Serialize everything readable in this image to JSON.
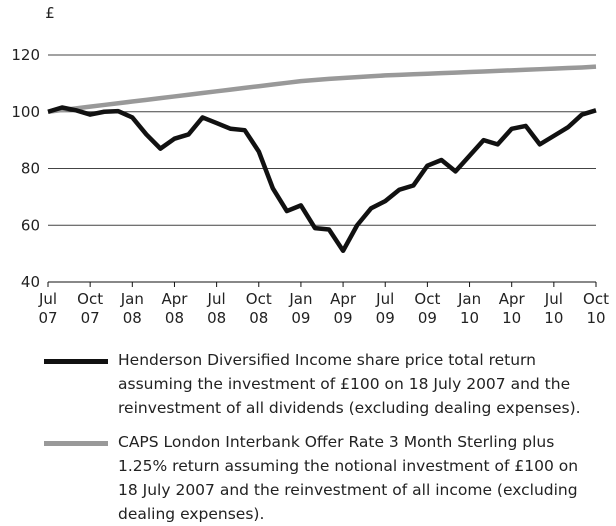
{
  "chart_data": {
    "type": "line",
    "y_label": "£",
    "categories": [
      "Jul 07",
      null,
      null,
      "Oct 07",
      null,
      null,
      "Jan 08",
      null,
      null,
      "Apr 08",
      null,
      null,
      "Jul 08",
      null,
      null,
      "Oct 08",
      null,
      null,
      "Jan 09",
      null,
      null,
      "Apr 09",
      null,
      null,
      "Jul 09",
      null,
      null,
      "Oct 09",
      null,
      null,
      "Jan 10",
      null,
      null,
      "Apr 10",
      null,
      null,
      "Jul 10",
      null,
      null,
      "Oct 10"
    ],
    "series": [
      {
        "name": "Henderson Diversified Income share price total return assuming the investment of £100 on 18 July 2007 and the reinvestment of all dividends (excluding dealing expenses).",
        "color": "#111111",
        "values": [
          100,
          101.5,
          100.5,
          99,
          100,
          100.2,
          98,
          92,
          87,
          90.5,
          92,
          98,
          96,
          94,
          93.5,
          86,
          73,
          65,
          67,
          59,
          58.5,
          51,
          60,
          66,
          68.5,
          72.5,
          74,
          81,
          83,
          79,
          84.5,
          90,
          88.5,
          94,
          95,
          88.5,
          91.5,
          94.5,
          99,
          100.5
        ]
      },
      {
        "name": "CAPS London Interbank Offer Rate 3 Month Sterling plus 1.25% return assuming the notional investment of £100 on 18 July 2007 and the reinvestment of all income (excluding dealing expenses).",
        "color": "#999999",
        "values": [
          100,
          100.6,
          101.2,
          101.8,
          102.4,
          103,
          103.6,
          104.2,
          104.8,
          105.4,
          106,
          106.6,
          107.2,
          107.8,
          108.4,
          109,
          109.6,
          110.2,
          110.8,
          111.2,
          111.6,
          111.9,
          112.2,
          112.5,
          112.8,
          113,
          113.2,
          113.4,
          113.6,
          113.8,
          114,
          114.2,
          114.4,
          114.6,
          114.8,
          115,
          115.2,
          115.4,
          115.6,
          115.9
        ]
      }
    ],
    "ylim": [
      40,
      120
    ],
    "yticks": [
      40,
      60,
      80,
      100,
      120
    ],
    "grid": true
  }
}
